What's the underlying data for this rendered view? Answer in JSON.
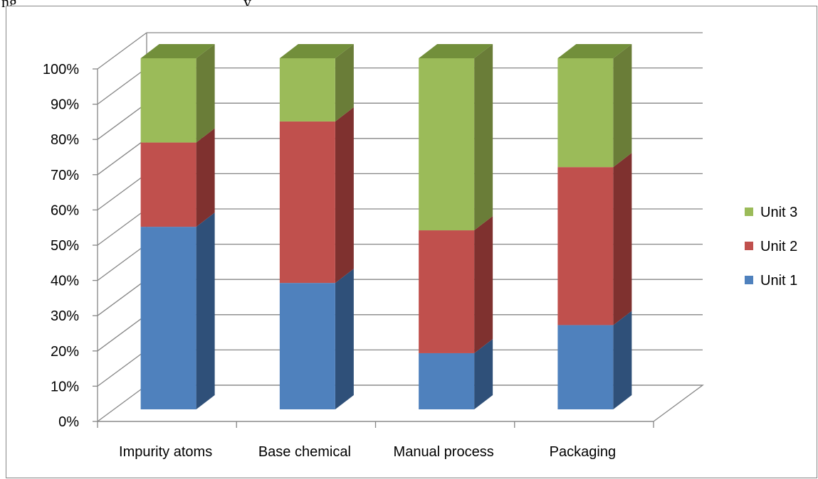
{
  "top_text": "ng",
  "top_text_tail": "y",
  "chart_data": {
    "type": "bar",
    "stacked": "percent",
    "style": "3d-column",
    "categories": [
      "Impurity atoms",
      "Base chemical",
      "Manual process",
      "Packaging"
    ],
    "series": [
      {
        "name": "Unit 1",
        "values": [
          52,
          36,
          16,
          24
        ],
        "color": "#4F81BD",
        "side": "#2F5079",
        "top": "#3F6698"
      },
      {
        "name": "Unit 2",
        "values": [
          24,
          46,
          35,
          45
        ],
        "color": "#C0504D",
        "side": "#7F312F",
        "top": "#9C3D3A"
      },
      {
        "name": "Unit 3",
        "values": [
          24,
          18,
          49,
          31
        ],
        "color": "#9BBB59",
        "side": "#6A7D38",
        "top": "#728F3B"
      }
    ],
    "y_ticks": [
      "0%",
      "10%",
      "20%",
      "30%",
      "40%",
      "50%",
      "60%",
      "70%",
      "80%",
      "90%",
      "100%"
    ],
    "ylim": [
      0,
      100
    ],
    "grid": true,
    "legend_position": "right",
    "legend_order": [
      "Unit 3",
      "Unit 2",
      "Unit 1"
    ]
  }
}
